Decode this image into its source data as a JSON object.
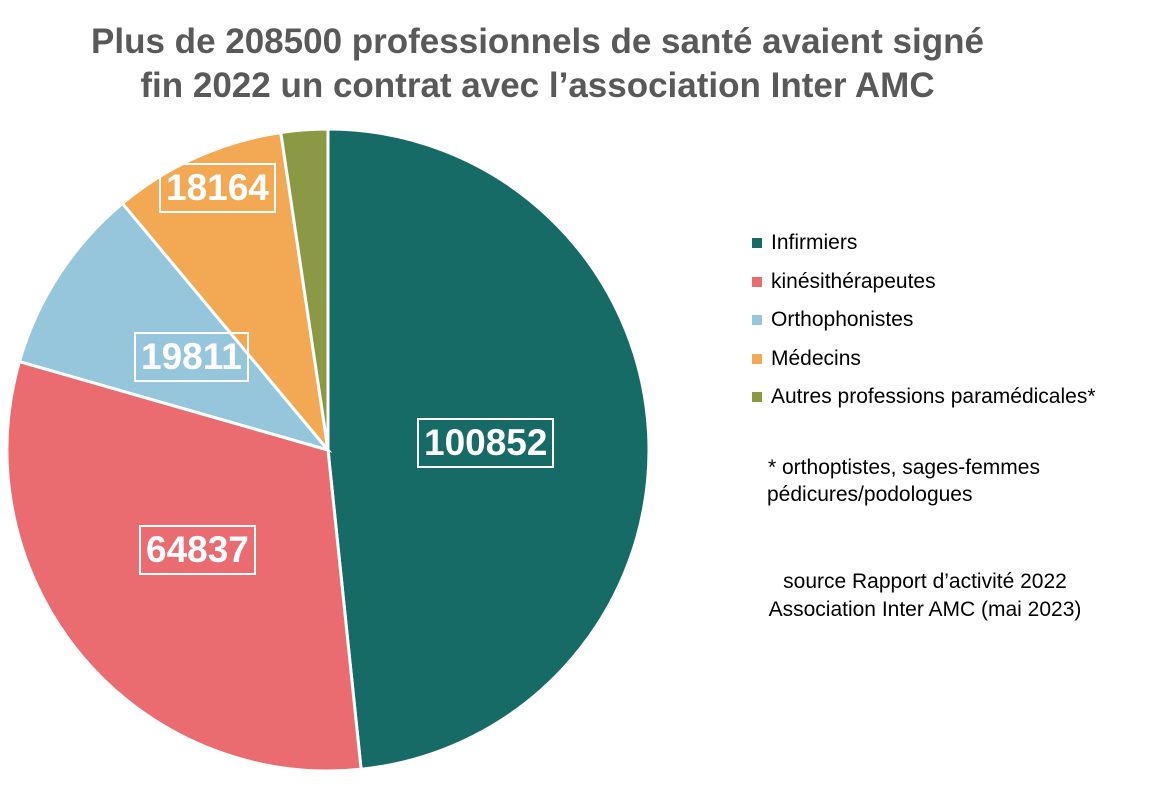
{
  "title": {
    "line1": "Plus de 208500 professionnels de santé avaient signé",
    "line2": "fin 2022 un contrat avec l’association Inter AMC"
  },
  "legend": {
    "items": [
      {
        "label": "Infirmiers",
        "color": "#176b66"
      },
      {
        "label": "kinésithérapeutes",
        "color": "#ea6b70"
      },
      {
        "label": "Orthophonistes",
        "color": "#96c6dc"
      },
      {
        "label": "Médecins",
        "color": "#f3a854"
      },
      {
        "label": "Autres professions paramédicales*",
        "color": "#8b9945"
      }
    ]
  },
  "footnote": {
    "line1": "* orthoptistes, sages-femmes",
    "line2": "pédicures/podologues"
  },
  "source": {
    "line1": "source Rapport d’activité 2022",
    "line2": "Association Inter AMC (mai 2023)"
  },
  "data_labels": {
    "infirmiers": "100852",
    "kine": "64837",
    "ortho": "19811",
    "medecins": "18164"
  },
  "chart_data": {
    "type": "pie",
    "title": "Plus de 208500 professionnels de santé avaient signé fin 2022 un contrat avec l’association Inter AMC",
    "categories": [
      "Infirmiers",
      "kinésithérapeutes",
      "Orthophonistes",
      "Médecins",
      "Autres professions paramédicales*"
    ],
    "values": [
      100852,
      64837,
      19811,
      18164,
      4900
    ],
    "value_labels_shown": [
      "100852",
      "64837",
      "19811",
      "18164",
      ""
    ],
    "colors": [
      "#176b66",
      "#ea6b70",
      "#96c6dc",
      "#f3a854",
      "#8b9945"
    ],
    "start_angle_deg": 0,
    "direction": "clockwise",
    "legend_position": "right",
    "notes": [
      "* orthoptistes, sages-femmes pédicures/podologues",
      "source Rapport d’activité 2022 Association Inter AMC (mai 2023)"
    ]
  }
}
